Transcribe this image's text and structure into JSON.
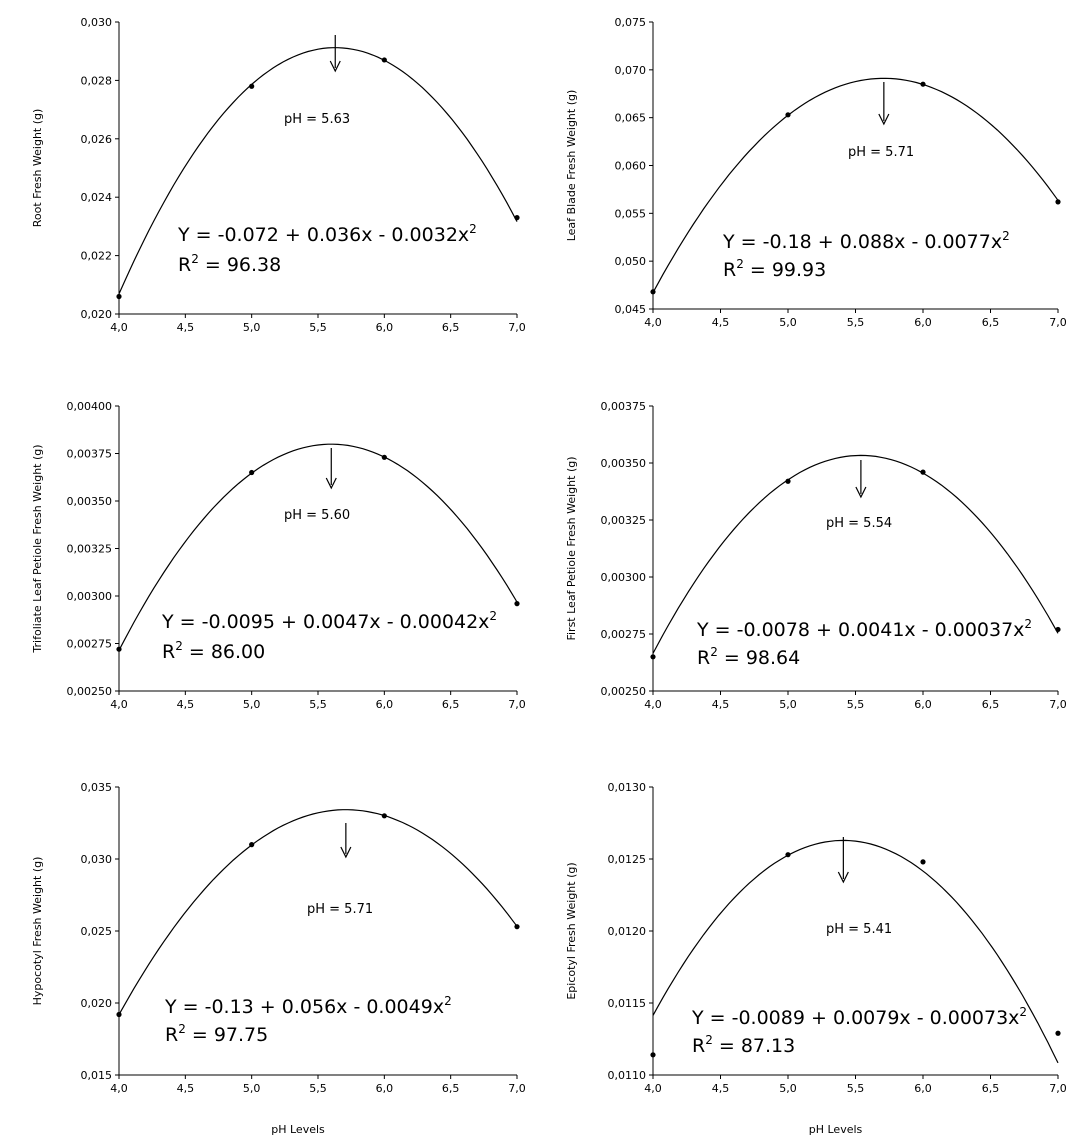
{
  "chart_data": [
    {
      "type": "scatter",
      "ylabel": "Root Fresh Weight (g)",
      "xlabel": "",
      "xlim": [
        4.0,
        7.0
      ],
      "ylim": [
        0.02,
        0.03
      ],
      "xticks": [
        "4,0",
        "4,5",
        "5,0",
        "5,5",
        "6,0",
        "6,5",
        "7,0"
      ],
      "yticks": [
        "0,020",
        "0,022",
        "0,024",
        "0,026",
        "0,028",
        "0,030"
      ],
      "x": [
        4.0,
        5.0,
        6.0,
        7.0
      ],
      "y": [
        0.0206,
        0.0278,
        0.0287,
        0.0233
      ],
      "fit": {
        "a": -0.072,
        "b": 0.036,
        "c": -0.0032
      },
      "equation": "Y = -0.072 + 0.036x - 0.0032x",
      "r2": "R",
      "r2_value": " = 96.38",
      "optimum": "pH = 5.63",
      "optimum_x": 5.63
    },
    {
      "type": "scatter",
      "ylabel": "Leaf Blade Fresh Weight (g)",
      "xlabel": "",
      "xlim": [
        4.0,
        7.0
      ],
      "ylim": [
        0.045,
        0.075
      ],
      "xticks": [
        "4,0",
        "4,5",
        "5,0",
        "5,5",
        "6,0",
        "6,5",
        "7,0"
      ],
      "yticks": [
        "0,045",
        "0,050",
        "0,055",
        "0,060",
        "0,065",
        "0,070",
        "0,075"
      ],
      "x": [
        4.0,
        5.0,
        6.0,
        7.0
      ],
      "y": [
        0.0468,
        0.0653,
        0.0685,
        0.0562
      ],
      "fit": {
        "a": -0.18,
        "b": 0.088,
        "c": -0.0077
      },
      "equation": "Y = -0.18 + 0.088x - 0.0077x",
      "r2": "R",
      "r2_value": " = 99.93",
      "optimum": "pH = 5.71",
      "optimum_x": 5.71
    },
    {
      "type": "scatter",
      "ylabel": "Trifoliate Leaf Petiole Fresh Weight (g)",
      "xlabel": "",
      "xlim": [
        4.0,
        7.0
      ],
      "ylim": [
        0.0025,
        0.004
      ],
      "xticks": [
        "4,0",
        "4,5",
        "5,0",
        "5,5",
        "6,0",
        "6,5",
        "7,0"
      ],
      "yticks": [
        "0,00250",
        "0,00275",
        "0,00300",
        "0,00325",
        "0,00350",
        "0,00375",
        "0,00400"
      ],
      "x": [
        4.0,
        5.0,
        6.0,
        7.0
      ],
      "y": [
        0.00272,
        0.00365,
        0.00373,
        0.00296
      ],
      "fit": {
        "a": -0.0095,
        "b": 0.0047,
        "c": -0.00042
      },
      "equation": "Y = -0.0095 + 0.0047x - 0.00042x",
      "r2": "R",
      "r2_value": " = 86.00",
      "optimum": "pH = 5.60",
      "optimum_x": 5.6
    },
    {
      "type": "scatter",
      "ylabel": "First Leaf Petiole Fresh Weight (g)",
      "xlabel": "",
      "xlim": [
        4.0,
        7.0
      ],
      "ylim": [
        0.0025,
        0.00375
      ],
      "xticks": [
        "4,0",
        "4,5",
        "5,0",
        "5,5",
        "6,0",
        "6,5",
        "7,0"
      ],
      "yticks": [
        "0,00250",
        "0,00275",
        "0,00300",
        "0,00325",
        "0,00350",
        "0,00375"
      ],
      "x": [
        4.0,
        5.0,
        6.0,
        7.0
      ],
      "y": [
        0.00265,
        0.00342,
        0.00346,
        0.00277
      ],
      "fit": {
        "a": -0.0078,
        "b": 0.0041,
        "c": -0.00037
      },
      "equation": "Y = -0.0078 + 0.0041x - 0.00037x",
      "r2": "R",
      "r2_value": " = 98.64",
      "optimum": "pH = 5.54",
      "optimum_x": 5.54
    },
    {
      "type": "scatter",
      "ylabel": "Hypocotyl Fresh Weight (g)",
      "xlabel": "pH Levels",
      "xlim": [
        4.0,
        7.0
      ],
      "ylim": [
        0.015,
        0.035
      ],
      "xticks": [
        "4,0",
        "4,5",
        "5,0",
        "5,5",
        "6,0",
        "6,5",
        "7,0"
      ],
      "yticks": [
        "0,015",
        "0,020",
        "0,025",
        "0,030",
        "0,035"
      ],
      "x": [
        4.0,
        5.0,
        6.0,
        7.0
      ],
      "y": [
        0.0192,
        0.031,
        0.033,
        0.0253
      ],
      "fit": {
        "a": -0.13,
        "b": 0.056,
        "c": -0.0049
      },
      "equation": "Y = -0.13 + 0.056x - 0.0049x",
      "r2": "R",
      "r2_value": " = 97.75",
      "optimum": "pH = 5.71",
      "optimum_x": 5.71
    },
    {
      "type": "scatter",
      "ylabel": "Epicotyl Fresh Weight (g)",
      "xlabel": "pH Levels",
      "xlim": [
        4.0,
        7.0
      ],
      "ylim": [
        0.011,
        0.013
      ],
      "xticks": [
        "4,0",
        "4,5",
        "5,0",
        "5,5",
        "6,0",
        "6,5",
        "7,0"
      ],
      "yticks": [
        "0,0110",
        "0,0115",
        "0,0120",
        "0,0125",
        "0,0130"
      ],
      "x": [
        4.0,
        5.0,
        6.0,
        7.0
      ],
      "y": [
        0.01114,
        0.01253,
        0.01248,
        0.01129
      ],
      "fit": {
        "a": -0.0089,
        "b": 0.0079,
        "c": -0.00073
      },
      "equation": "Y = -0.0089 + 0.0079x - 0.00073x",
      "r2": "R",
      "r2_value": " = 87.13",
      "optimum": "pH = 5.41",
      "optimum_x": 5.41
    }
  ]
}
